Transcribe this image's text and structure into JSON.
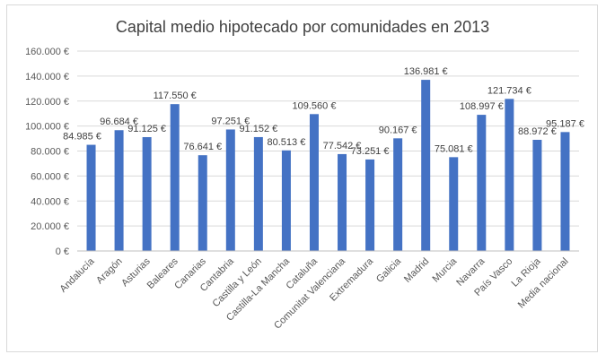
{
  "chart_data": {
    "type": "bar",
    "title": "Capital medio hipotecado por comunidades en 2013",
    "xlabel": "",
    "ylabel": "",
    "ylim": [
      0,
      160000
    ],
    "yticks": [
      0,
      20000,
      40000,
      60000,
      80000,
      100000,
      120000,
      140000,
      160000
    ],
    "ytick_labels": [
      "0 €",
      "20.000 €",
      "40.000 €",
      "60.000 €",
      "80.000 €",
      "100.000 €",
      "120.000 €",
      "140.000 €",
      "160.000 €"
    ],
    "categories": [
      "Andalucía",
      "Aragón",
      "Asturias",
      "Baleares",
      "Canarias",
      "Cantabria",
      "Castilla y León",
      "Castilla-La Mancha",
      "Cataluña",
      "Comunitat Valenciana",
      "Extremadura",
      "Galicia",
      "Madrid",
      "Murcia",
      "Navarra",
      "País Vasco",
      "La Rioja",
      "Media nacional"
    ],
    "values": [
      84985,
      96684,
      91125,
      117550,
      76641,
      97251,
      91152,
      80513,
      109560,
      77542,
      73251,
      90167,
      136981,
      75081,
      108997,
      121734,
      88972,
      95187
    ],
    "data_labels": [
      "84.985 €",
      "96.684 €",
      "91.125 €",
      "117.550 €",
      "76.641 €",
      "97.251 €",
      "91.152 €",
      "80.513 €",
      "109.560 €",
      "77.542 €",
      "73.251 €",
      "90.167 €",
      "136.981 €",
      "75.081 €",
      "108.997 €",
      "121.734 €",
      "88.972 €",
      "95.187 €"
    ],
    "grid": true,
    "legend": "none",
    "bar_color": "#4472c4"
  }
}
